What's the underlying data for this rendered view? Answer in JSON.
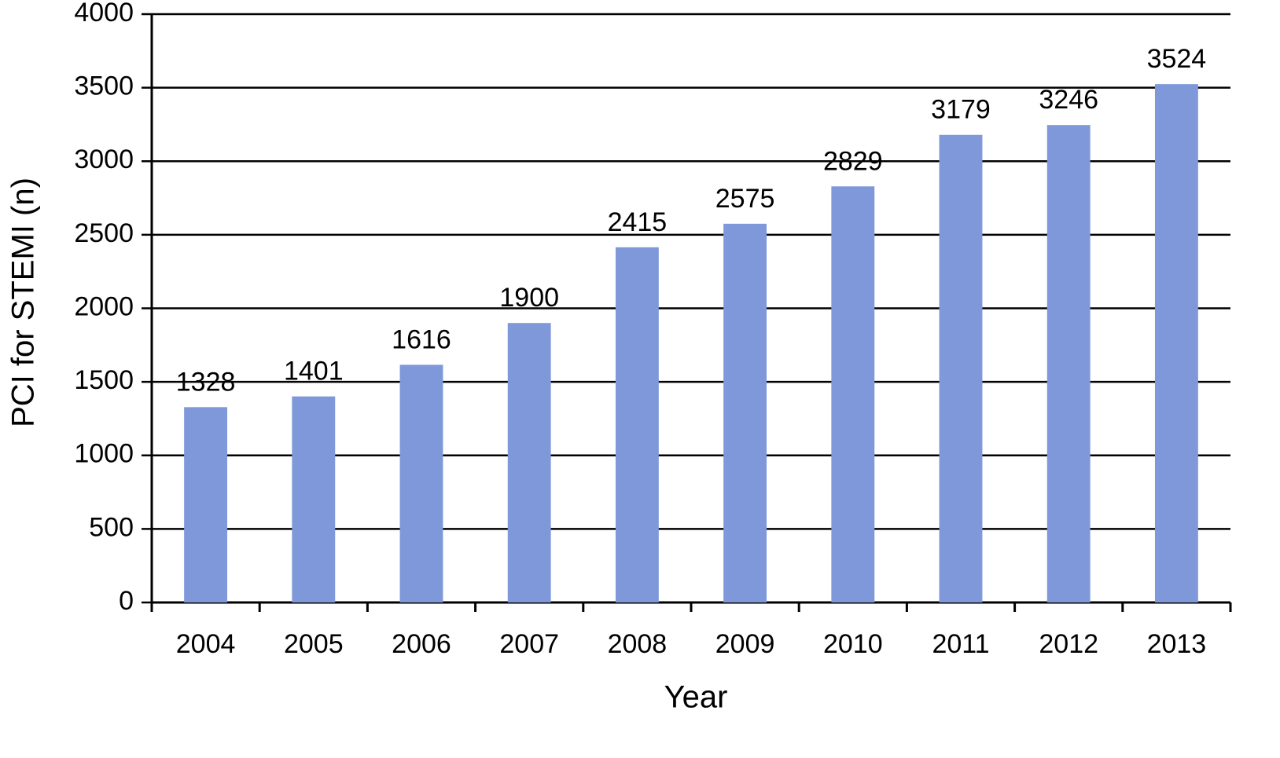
{
  "chart_data": {
    "type": "bar",
    "x_label": "Year",
    "y_label": "PCI for STEMI (n)",
    "categories": [
      "2004",
      "2005",
      "2006",
      "2007",
      "2008",
      "2009",
      "2010",
      "2011",
      "2012",
      "2013"
    ],
    "values": [
      1328,
      1401,
      1616,
      1900,
      2415,
      2575,
      2829,
      3179,
      3246,
      3524
    ],
    "color": "#7f98d9",
    "ylim": [
      0,
      4000
    ],
    "yticks": [
      0,
      500,
      1000,
      1500,
      2000,
      2500,
      3000,
      3500,
      4000
    ],
    "grid": true
  }
}
